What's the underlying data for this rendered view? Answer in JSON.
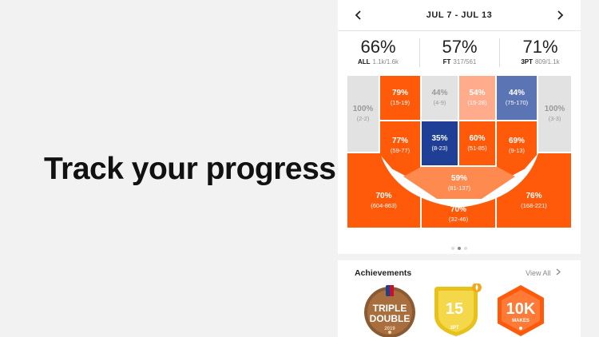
{
  "headline": "Track your progress",
  "header": {
    "date_range": "JUL 7 - JUL 13"
  },
  "stats": [
    {
      "pct": "66%",
      "label": "ALL",
      "detail": "1.1k/1.6k"
    },
    {
      "pct": "57%",
      "label": "FT",
      "detail": "317/561"
    },
    {
      "pct": "71%",
      "label": "3PT",
      "detail": "809/1.1k"
    }
  ],
  "zones": {
    "left_corner": {
      "pct": "100%",
      "ratio": "(2-2)"
    },
    "left_elbow_top": {
      "pct": "79%",
      "ratio": "(15-19)"
    },
    "paint_left_top": {
      "pct": "44%",
      "ratio": "(4-9)"
    },
    "paint_right_top": {
      "pct": "54%",
      "ratio": "(15-28)"
    },
    "right_elbow_top": {
      "pct": "44%",
      "ratio": "(75-170)"
    },
    "right_corner": {
      "pct": "100%",
      "ratio": "(3-3)"
    },
    "left_wing": {
      "pct": "77%",
      "ratio": "(59-77)"
    },
    "paint_left_low": {
      "pct": "35%",
      "ratio": "(8-23)"
    },
    "paint_right_low": {
      "pct": "60%",
      "ratio": "(51-85)"
    },
    "right_wing": {
      "pct": "69%",
      "ratio": "(9-13)"
    },
    "left_three": {
      "pct": "70%",
      "ratio": "(604-863)"
    },
    "top_key": {
      "pct": "59%",
      "ratio": "(81-137)"
    },
    "top_three": {
      "pct": "70%",
      "ratio": "(32-46)"
    },
    "right_three": {
      "pct": "76%",
      "ratio": "(168-221)"
    }
  },
  "colors": {
    "hot": "#ff5a0a",
    "warm": "#ff8a50",
    "light": "#ffab8c",
    "neutral": "#e2e2e2",
    "cool": "#5b74b3",
    "cold": "#1f3f96"
  },
  "achievements": {
    "title": "Achievements",
    "view_all": "View All",
    "badges": [
      {
        "line1": "TRIPLE",
        "line2": "DOUBLE",
        "year": "2019",
        "icon": "nba-logo-icon"
      },
      {
        "value": "15",
        "label": "3PT",
        "icon": "flame-icon"
      },
      {
        "value": "10K",
        "label": "MAKES"
      }
    ]
  }
}
